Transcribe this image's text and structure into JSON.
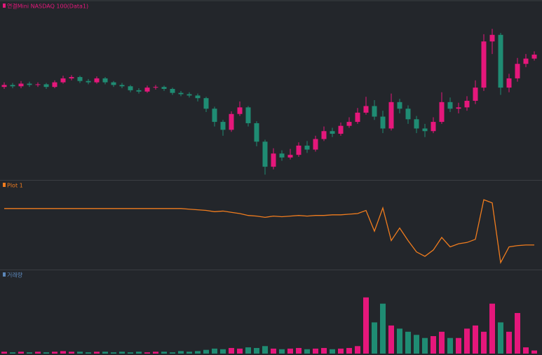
{
  "chart_data": [
    {
      "type": "candlestick",
      "title": "연결Mini NASDAQ 100(Data1)",
      "title_color": "#e5177b",
      "up_color": "#e5177b",
      "down_color": "#1f8c73",
      "ylim": [
        0,
        257
      ],
      "open": [
        140,
        143,
        141,
        145,
        143,
        144,
        140,
        147,
        153,
        155,
        149,
        147,
        153,
        147,
        143,
        141,
        135,
        133,
        139,
        140,
        137,
        131,
        129,
        127,
        123,
        107,
        87,
        75,
        99,
        109,
        85,
        57,
        19,
        39,
        33,
        37,
        51,
        45,
        61,
        73,
        69,
        81,
        87,
        101,
        111,
        95,
        77,
        117,
        107,
        91,
        77,
        73,
        87,
        117,
        107,
        109,
        119,
        139,
        209,
        219,
        139,
        153,
        175,
        183
      ],
      "high": [
        147,
        146,
        149,
        148,
        147,
        146,
        150,
        157,
        158,
        157,
        152,
        156,
        155,
        149,
        146,
        143,
        138,
        142,
        143,
        142,
        139,
        134,
        132,
        130,
        125,
        110,
        90,
        103,
        118,
        111,
        88,
        60,
        47,
        44,
        46,
        56,
        58,
        66,
        80,
        78,
        86,
        94,
        108,
        125,
        120,
        104,
        130,
        122,
        112,
        96,
        84,
        94,
        132,
        124,
        116,
        126,
        150,
        220,
        228,
        222,
        160,
        184,
        190,
        194
      ],
      "low": [
        137,
        138,
        138,
        140,
        140,
        137,
        138,
        145,
        150,
        146,
        144,
        145,
        144,
        140,
        138,
        132,
        130,
        131,
        136,
        134,
        128,
        126,
        124,
        118,
        102,
        80,
        66,
        72,
        96,
        80,
        50,
        7,
        15,
        28,
        30,
        34,
        40,
        42,
        58,
        64,
        66,
        78,
        84,
        98,
        90,
        70,
        74,
        100,
        84,
        70,
        64,
        70,
        84,
        102,
        100,
        104,
        114,
        134,
        190,
        128,
        132,
        148,
        170,
        180
      ],
      "close": [
        143,
        141,
        145,
        143,
        144,
        140,
        147,
        153,
        155,
        149,
        147,
        153,
        147,
        143,
        141,
        135,
        133,
        139,
        140,
        137,
        131,
        129,
        127,
        123,
        107,
        87,
        75,
        99,
        109,
        85,
        57,
        19,
        39,
        33,
        37,
        51,
        45,
        61,
        73,
        69,
        81,
        87,
        101,
        111,
        95,
        77,
        117,
        107,
        91,
        77,
        73,
        87,
        117,
        107,
        109,
        119,
        139,
        209,
        219,
        139,
        153,
        175,
        183,
        189
      ]
    },
    {
      "type": "line",
      "title": "Plot 1",
      "title_color": "#f07c1e",
      "color": "#f07c1e",
      "ylim": [
        0,
        127
      ],
      "values": [
        96,
        96,
        96,
        96,
        96,
        96,
        96,
        96,
        96,
        96,
        96,
        96,
        96,
        96,
        96,
        96,
        96,
        96,
        96,
        96,
        96,
        96,
        95,
        94,
        93,
        91,
        92,
        90,
        88,
        85,
        84,
        82,
        84,
        83,
        84,
        85,
        84,
        85,
        85,
        86,
        86,
        87,
        88,
        93,
        60,
        97,
        45,
        65,
        45,
        27,
        20,
        30,
        50,
        35,
        40,
        42,
        47,
        110,
        105,
        10,
        35,
        37,
        38,
        38
      ]
    },
    {
      "type": "bar",
      "title": "거래량",
      "title_color": "#5b86b8",
      "up_color": "#e5177b",
      "down_color": "#1f8c73",
      "ylim": [
        0,
        120
      ],
      "values": [
        3,
        2,
        3,
        2,
        3,
        2,
        3,
        4,
        3,
        3,
        2,
        3,
        3,
        2,
        3,
        2,
        3,
        2,
        3,
        3,
        2,
        4,
        3,
        4,
        6,
        8,
        7,
        9,
        8,
        10,
        9,
        12,
        8,
        7,
        8,
        9,
        7,
        8,
        9,
        7,
        8,
        9,
        12,
        90,
        50,
        80,
        45,
        40,
        35,
        30,
        25,
        28,
        35,
        25,
        25,
        40,
        45,
        35,
        80,
        50,
        35,
        65,
        10,
        5
      ]
    }
  ]
}
